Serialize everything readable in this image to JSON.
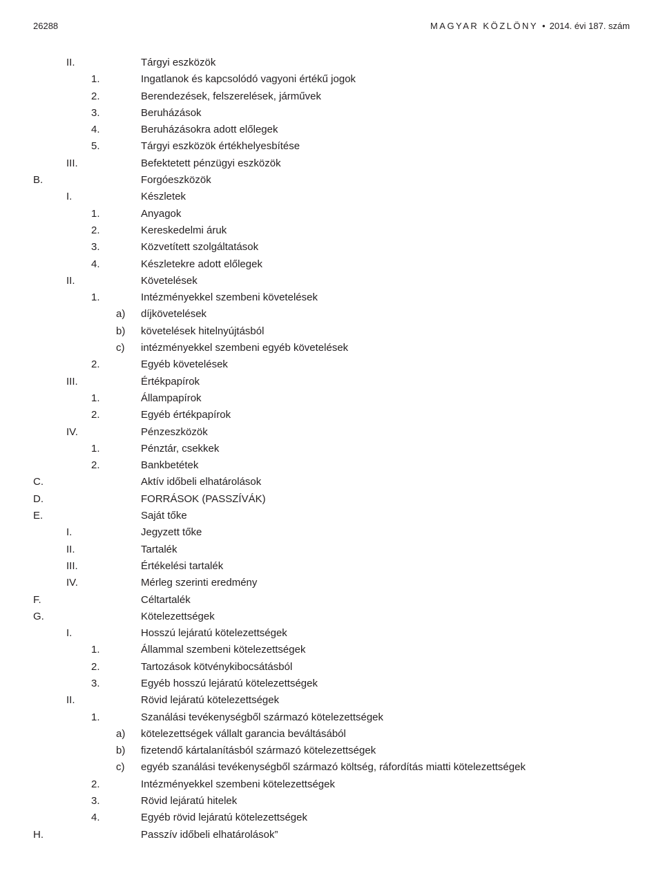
{
  "header": {
    "page_number": "26288",
    "title_spaced": "MAGYAR KÖZLÖNY",
    "bullet": "•",
    "issue": "2014. évi 187. szám"
  },
  "lines": [
    {
      "c0": "",
      "c1": "II.",
      "c2": "",
      "c3": "",
      "txt": "Tárgyi eszközök"
    },
    {
      "c0": "",
      "c1": "",
      "c2": "1.",
      "c3": "",
      "txt": "Ingatlanok és kapcsolódó vagyoni értékű jogok"
    },
    {
      "c0": "",
      "c1": "",
      "c2": "2.",
      "c3": "",
      "txt": "Berendezések, felszerelések, járművek"
    },
    {
      "c0": "",
      "c1": "",
      "c2": "3.",
      "c3": "",
      "txt": "Beruházások"
    },
    {
      "c0": "",
      "c1": "",
      "c2": "4.",
      "c3": "",
      "txt": "Beruházásokra adott előlegek"
    },
    {
      "c0": "",
      "c1": "",
      "c2": "5.",
      "c3": "",
      "txt": "Tárgyi eszközök értékhelyesbítése"
    },
    {
      "c0": "",
      "c1": "III.",
      "c2": "",
      "c3": "",
      "txt": "Befektetett pénzügyi eszközök"
    },
    {
      "c0": "B.",
      "c1": "",
      "c2": "",
      "c3": "",
      "txt": "Forgóeszközök"
    },
    {
      "c0": "",
      "c1": "I.",
      "c2": "",
      "c3": "",
      "txt": "Készletek"
    },
    {
      "c0": "",
      "c1": "",
      "c2": "1.",
      "c3": "",
      "txt": "Anyagok"
    },
    {
      "c0": "",
      "c1": "",
      "c2": "2.",
      "c3": "",
      "txt": "Kereskedelmi áruk"
    },
    {
      "c0": "",
      "c1": "",
      "c2": "3.",
      "c3": "",
      "txt": "Közvetített szolgáltatások"
    },
    {
      "c0": "",
      "c1": "",
      "c2": "4.",
      "c3": "",
      "txt": "Készletekre adott előlegek"
    },
    {
      "c0": "",
      "c1": "II.",
      "c2": "",
      "c3": "",
      "txt": "Követelések"
    },
    {
      "c0": "",
      "c1": "",
      "c2": "1.",
      "c3": "",
      "txt": "Intézményekkel szembeni követelések"
    },
    {
      "c0": "",
      "c1": "",
      "c2": "",
      "c3": "a)",
      "txt": "díjkövetelések"
    },
    {
      "c0": "",
      "c1": "",
      "c2": "",
      "c3": "b)",
      "txt": "követelések hitelnyújtásból"
    },
    {
      "c0": "",
      "c1": "",
      "c2": "",
      "c3": "c)",
      "txt": "intézményekkel szembeni egyéb követelések"
    },
    {
      "c0": "",
      "c1": "",
      "c2": "2.",
      "c3": "",
      "txt": "Egyéb követelések"
    },
    {
      "c0": "",
      "c1": "III.",
      "c2": "",
      "c3": "",
      "txt": "Értékpapírok"
    },
    {
      "c0": "",
      "c1": "",
      "c2": "1.",
      "c3": "",
      "txt": "Állampapírok"
    },
    {
      "c0": "",
      "c1": "",
      "c2": "2.",
      "c3": "",
      "txt": "Egyéb értékpapírok"
    },
    {
      "c0": "",
      "c1": "IV.",
      "c2": "",
      "c3": "",
      "txt": "Pénzeszközök"
    },
    {
      "c0": "",
      "c1": "",
      "c2": "1.",
      "c3": "",
      "txt": "Pénztár, csekkek"
    },
    {
      "c0": "",
      "c1": "",
      "c2": "2.",
      "c3": "",
      "txt": "Bankbetétek"
    },
    {
      "c0": "C.",
      "c1": "",
      "c2": "",
      "c3": "",
      "txt": "Aktív időbeli elhatárolások"
    },
    {
      "c0": "D.",
      "c1": "",
      "c2": "",
      "c3": "",
      "txt": "FORRÁSOK (PASSZÍVÁK)"
    },
    {
      "c0": "E.",
      "c1": "",
      "c2": "",
      "c3": "",
      "txt": "Saját tőke"
    },
    {
      "c0": "",
      "c1": "I.",
      "c2": "",
      "c3": "",
      "txt": "Jegyzett tőke"
    },
    {
      "c0": "",
      "c1": "II.",
      "c2": "",
      "c3": "",
      "txt": "Tartalék"
    },
    {
      "c0": "",
      "c1": "III.",
      "c2": "",
      "c3": "",
      "txt": "Értékelési tartalék"
    },
    {
      "c0": "",
      "c1": "IV.",
      "c2": "",
      "c3": "",
      "txt": "Mérleg szerinti eredmény"
    },
    {
      "c0": "F.",
      "c1": "",
      "c2": "",
      "c3": "",
      "txt": "Céltartalék"
    },
    {
      "c0": "G.",
      "c1": "",
      "c2": "",
      "c3": "",
      "txt": "Kötelezettségek"
    },
    {
      "c0": "",
      "c1": "I.",
      "c2": "",
      "c3": "",
      "txt": "Hosszú lejáratú kötelezettségek"
    },
    {
      "c0": "",
      "c1": "",
      "c2": "1.",
      "c3": "",
      "txt": "Állammal szembeni kötelezettségek"
    },
    {
      "c0": "",
      "c1": "",
      "c2": "2.",
      "c3": "",
      "txt": "Tartozások kötvénykibocsátásból"
    },
    {
      "c0": "",
      "c1": "",
      "c2": "3.",
      "c3": "",
      "txt": "Egyéb hosszú lejáratú kötelezettségek"
    },
    {
      "c0": "",
      "c1": "II.",
      "c2": "",
      "c3": "",
      "txt": "Rövid lejáratú kötelezettségek"
    },
    {
      "c0": "",
      "c1": "",
      "c2": "1.",
      "c3": "",
      "txt": "Szanálási tevékenységből származó kötelezettségek"
    },
    {
      "c0": "",
      "c1": "",
      "c2": "",
      "c3": "a)",
      "txt": "kötelezettségek vállalt garancia beváltásából"
    },
    {
      "c0": "",
      "c1": "",
      "c2": "",
      "c3": "b)",
      "txt": "fizetendő kártalanításból származó kötelezettségek"
    },
    {
      "c0": "",
      "c1": "",
      "c2": "",
      "c3": "c)",
      "txt": "egyéb szanálási tevékenységből származó költség, ráfordítás miatti kötelezettségek"
    },
    {
      "c0": "",
      "c1": "",
      "c2": "2.",
      "c3": "",
      "txt": "Intézményekkel szembeni kötelezettségek"
    },
    {
      "c0": "",
      "c1": "",
      "c2": "3.",
      "c3": "",
      "txt": "Rövid lejáratú hitelek"
    },
    {
      "c0": "",
      "c1": "",
      "c2": "4.",
      "c3": "",
      "txt": "Egyéb rövid lejáratú kötelezettségek"
    },
    {
      "c0": "H.",
      "c1": "",
      "c2": "",
      "c3": "",
      "txt": "Passzív időbeli elhatárolások”"
    }
  ]
}
